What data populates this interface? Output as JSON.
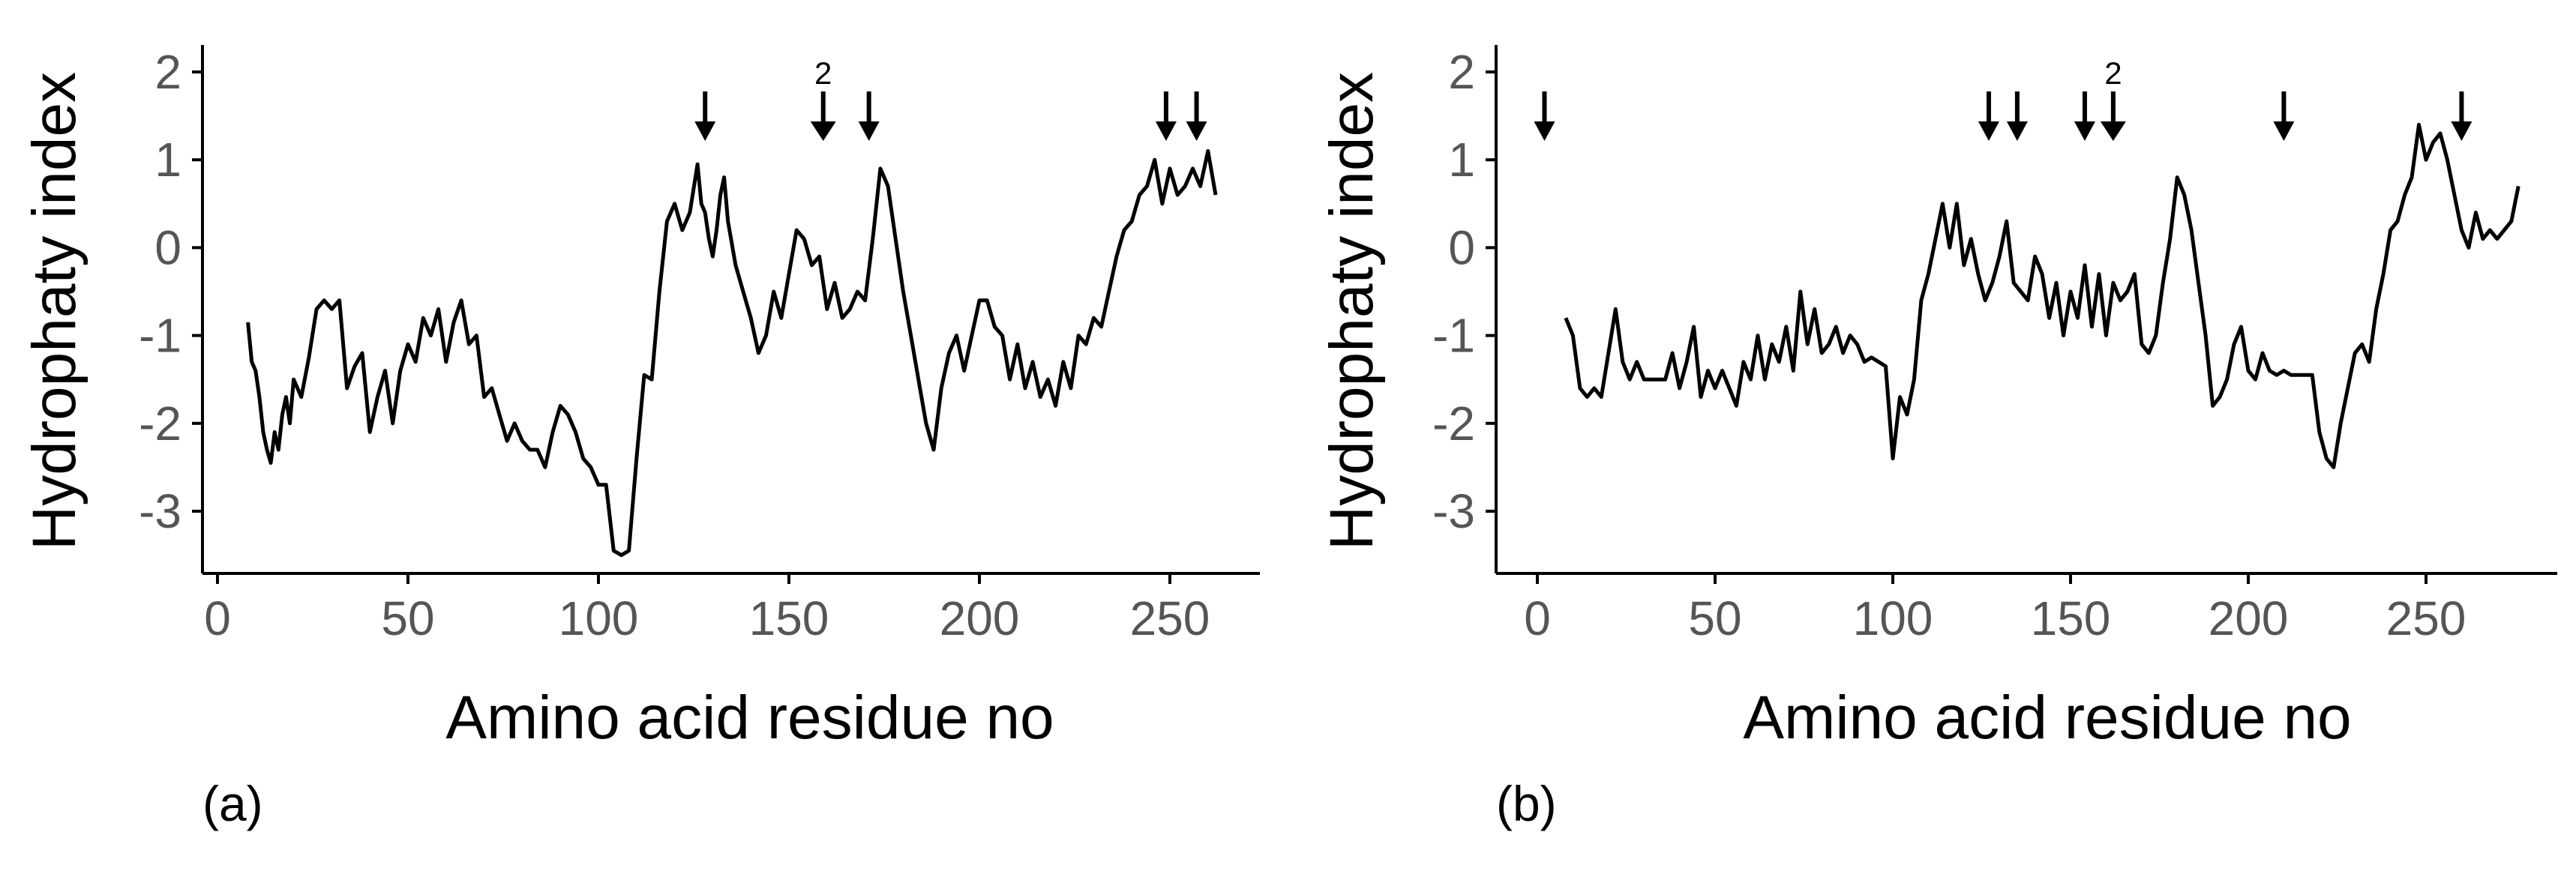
{
  "chart_data": [
    {
      "type": "line",
      "panel_label": "(a)",
      "xlabel": "Amino acid residue no",
      "ylabel": "Hydrophaty index",
      "xlim": [
        0,
        265
      ],
      "ylim": [
        -3.5,
        2.1
      ],
      "xticks": [
        0,
        50,
        100,
        150,
        200,
        250
      ],
      "xtick_labels": [
        "0",
        "50",
        "100",
        "150",
        "200",
        "250"
      ],
      "yticks": [
        2,
        1,
        0,
        -1,
        -2,
        -3
      ],
      "ytick_labels": [
        "2",
        "1",
        "0",
        "-1",
        "-2",
        "-3"
      ],
      "grid": false,
      "series": [
        {
          "x": [
            8,
            9,
            10,
            11,
            12,
            13,
            14,
            15,
            16,
            17,
            18,
            19,
            20,
            22,
            24,
            26,
            28,
            30,
            32,
            34,
            36,
            38,
            40,
            42,
            44,
            46,
            48,
            50,
            52,
            54,
            56,
            58,
            60,
            62,
            64,
            66,
            68,
            70,
            72,
            74,
            76,
            78,
            80,
            82,
            84,
            86,
            88,
            90,
            92,
            94,
            96,
            98,
            100,
            102,
            104,
            106,
            108,
            110,
            112,
            114,
            116,
            118,
            120,
            122,
            124,
            126,
            127,
            128,
            129,
            130,
            131,
            132,
            133,
            134,
            136,
            138,
            140,
            142,
            144,
            146,
            148,
            150,
            152,
            154,
            156,
            158,
            160,
            162,
            164,
            166,
            168,
            170,
            172,
            174,
            176,
            178,
            180,
            182,
            184,
            186,
            188,
            190,
            192,
            194,
            196,
            198,
            200,
            202,
            204,
            206,
            208,
            210,
            212,
            214,
            216,
            218,
            220,
            222,
            224,
            226,
            228,
            230,
            232,
            234,
            236,
            238,
            240,
            242,
            244,
            246,
            248,
            250,
            252,
            254,
            256,
            258,
            260,
            262
          ],
          "y": [
            -0.85,
            -1.3,
            -1.4,
            -1.7,
            -2.1,
            -2.3,
            -2.45,
            -2.1,
            -2.3,
            -1.9,
            -1.7,
            -2.0,
            -1.5,
            -1.7,
            -1.25,
            -0.7,
            -0.6,
            -0.7,
            -0.6,
            -1.6,
            -1.35,
            -1.2,
            -2.1,
            -1.7,
            -1.4,
            -2.0,
            -1.4,
            -1.1,
            -1.3,
            -0.8,
            -1.0,
            -0.7,
            -1.3,
            -0.85,
            -0.6,
            -1.1,
            -1.0,
            -1.7,
            -1.6,
            -1.9,
            -2.2,
            -2.0,
            -2.2,
            -2.3,
            -2.3,
            -2.5,
            -2.1,
            -1.8,
            -1.9,
            -2.1,
            -2.4,
            -2.5,
            -2.7,
            -2.7,
            -3.45,
            -3.5,
            -3.45,
            -2.4,
            -1.45,
            -1.5,
            -0.5,
            0.3,
            0.5,
            0.2,
            0.4,
            0.95,
            0.5,
            0.4,
            0.1,
            -0.1,
            0.2,
            0.6,
            0.8,
            0.3,
            -0.2,
            -0.5,
            -0.8,
            -1.2,
            -1.0,
            -0.5,
            -0.8,
            -0.3,
            0.2,
            0.1,
            -0.2,
            -0.1,
            -0.7,
            -0.4,
            -0.8,
            -0.7,
            -0.5,
            -0.6,
            0.1,
            0.9,
            0.7,
            0.1,
            -0.5,
            -1.0,
            -1.5,
            -2.0,
            -2.3,
            -1.6,
            -1.2,
            -1.0,
            -1.4,
            -1.0,
            -0.6,
            -0.6,
            -0.9,
            -1.0,
            -1.5,
            -1.1,
            -1.6,
            -1.3,
            -1.7,
            -1.5,
            -1.8,
            -1.3,
            -1.6,
            -1.0,
            -1.1,
            -0.8,
            -0.9,
            -0.5,
            -0.1,
            0.2,
            0.3,
            0.6,
            0.7,
            1.0,
            0.5,
            0.9,
            0.6,
            0.7,
            0.9,
            0.7,
            1.1,
            0.6
          ]
        }
      ],
      "arrows": [
        {
          "x": 128,
          "count": 1
        },
        {
          "x": 159,
          "count": 2,
          "count_label": "2"
        },
        {
          "x": 171,
          "count": 1
        },
        {
          "x": 249,
          "count": 1
        },
        {
          "x": 257,
          "count": 1
        }
      ]
    },
    {
      "type": "line",
      "panel_label": "(b)",
      "xlabel": "Amino acid residue no",
      "ylabel": "Hydrophaty index",
      "xlim": [
        0,
        285
      ],
      "ylim": [
        -3.5,
        2.1
      ],
      "xticks": [
        0,
        50,
        100,
        150,
        200,
        250
      ],
      "xtick_labels": [
        "0",
        "50",
        "100",
        "150",
        "200",
        "250"
      ],
      "yticks": [
        2,
        1,
        0,
        -1,
        -2,
        -3
      ],
      "ytick_labels": [
        "2",
        "1",
        "0",
        "-1",
        "-2",
        "-3"
      ],
      "grid": false,
      "series": [
        {
          "x": [
            8,
            10,
            12,
            14,
            16,
            18,
            20,
            22,
            24,
            26,
            28,
            30,
            32,
            34,
            36,
            38,
            40,
            42,
            44,
            46,
            48,
            50,
            52,
            54,
            56,
            58,
            60,
            62,
            64,
            66,
            68,
            70,
            72,
            74,
            76,
            78,
            80,
            82,
            84,
            86,
            88,
            90,
            92,
            94,
            96,
            98,
            100,
            102,
            104,
            106,
            108,
            110,
            112,
            114,
            116,
            118,
            120,
            122,
            124,
            126,
            128,
            130,
            132,
            134,
            136,
            138,
            140,
            142,
            144,
            146,
            148,
            150,
            152,
            154,
            156,
            158,
            160,
            162,
            164,
            166,
            168,
            170,
            172,
            174,
            176,
            178,
            180,
            182,
            184,
            186,
            188,
            190,
            192,
            194,
            196,
            198,
            200,
            202,
            204,
            206,
            208,
            210,
            212,
            214,
            216,
            218,
            220,
            222,
            224,
            226,
            228,
            230,
            232,
            234,
            236,
            238,
            240,
            242,
            244,
            246,
            248,
            250,
            252,
            254,
            256,
            258,
            260,
            262,
            264,
            266,
            268,
            270,
            272,
            274,
            276
          ],
          "y": [
            -0.8,
            -1.0,
            -1.6,
            -1.7,
            -1.6,
            -1.7,
            -1.2,
            -0.7,
            -1.3,
            -1.5,
            -1.3,
            -1.5,
            -1.5,
            -1.5,
            -1.5,
            -1.2,
            -1.6,
            -1.3,
            -0.9,
            -1.7,
            -1.4,
            -1.6,
            -1.4,
            -1.6,
            -1.8,
            -1.3,
            -1.5,
            -1.0,
            -1.5,
            -1.1,
            -1.3,
            -0.9,
            -1.4,
            -0.5,
            -1.1,
            -0.7,
            -1.2,
            -1.1,
            -0.9,
            -1.2,
            -1.0,
            -1.1,
            -1.3,
            -1.25,
            -1.3,
            -1.35,
            -2.4,
            -1.7,
            -1.9,
            -1.5,
            -0.6,
            -0.3,
            0.1,
            0.5,
            0.0,
            0.5,
            -0.2,
            0.1,
            -0.3,
            -0.6,
            -0.4,
            -0.1,
            0.3,
            -0.4,
            -0.5,
            -0.6,
            -0.1,
            -0.3,
            -0.8,
            -0.4,
            -1.0,
            -0.5,
            -0.8,
            -0.2,
            -0.9,
            -0.3,
            -1.0,
            -0.4,
            -0.6,
            -0.5,
            -0.3,
            -1.1,
            -1.2,
            -1.0,
            -0.4,
            0.1,
            0.8,
            0.6,
            0.2,
            -0.4,
            -1.0,
            -1.8,
            -1.7,
            -1.5,
            -1.1,
            -0.9,
            -1.4,
            -1.5,
            -1.2,
            -1.4,
            -1.45,
            -1.4,
            -1.45,
            -1.45,
            -1.45,
            -1.45,
            -2.1,
            -2.4,
            -2.5,
            -2.0,
            -1.6,
            -1.2,
            -1.1,
            -1.3,
            -0.7,
            -0.3,
            0.2,
            0.3,
            0.6,
            0.8,
            1.4,
            1.0,
            1.2,
            1.3,
            1.0,
            0.6,
            0.2,
            0.0,
            0.4,
            0.1,
            0.2,
            0.1,
            0.2,
            0.3,
            0.7
          ]
        }
      ],
      "arrows": [
        {
          "x": 2,
          "count": 1
        },
        {
          "x": 127,
          "count": 1
        },
        {
          "x": 135,
          "count": 1
        },
        {
          "x": 154,
          "count": 1
        },
        {
          "x": 162,
          "count": 2,
          "count_label": "2"
        },
        {
          "x": 210,
          "count": 1
        },
        {
          "x": 260,
          "count": 1
        }
      ]
    }
  ]
}
